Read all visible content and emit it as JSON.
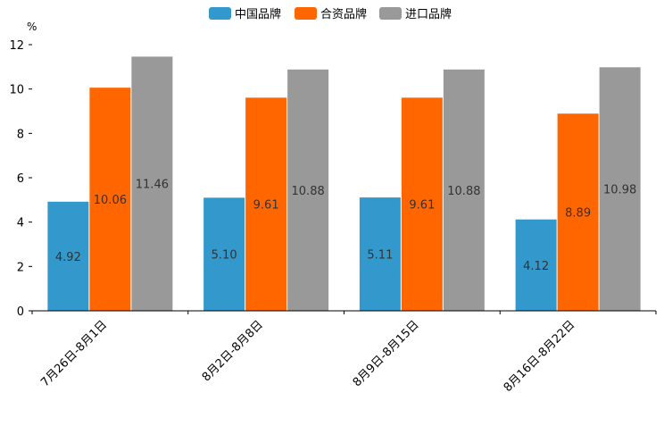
{
  "chart_data": {
    "type": "bar",
    "title": "",
    "ylabel": "%",
    "xlabel": "",
    "ylim": [
      0,
      12
    ],
    "yticks": [
      0,
      2,
      4,
      6,
      8,
      10,
      12
    ],
    "grid": false,
    "legend_position": "top-center",
    "categories": [
      "7月26日-8月1日",
      "8月2日-8月8日",
      "8月9日-8月15日",
      "8月16日-8月22日"
    ],
    "series": [
      {
        "name": "中国品牌",
        "color": "#3399CC",
        "values": [
          4.92,
          5.1,
          5.11,
          4.12
        ],
        "labels": [
          "4.92",
          "5.10",
          "5.11",
          "4.12"
        ]
      },
      {
        "name": "合资品牌",
        "color": "#FF6600",
        "values": [
          10.06,
          9.61,
          9.61,
          8.89
        ],
        "labels": [
          "10.06",
          "9.61",
          "9.61",
          "8.89"
        ]
      },
      {
        "name": "进口品牌",
        "color": "#999999",
        "values": [
          11.46,
          10.88,
          10.88,
          10.98
        ],
        "labels": [
          "11.46",
          "10.88",
          "10.88",
          "10.98"
        ]
      }
    ]
  }
}
